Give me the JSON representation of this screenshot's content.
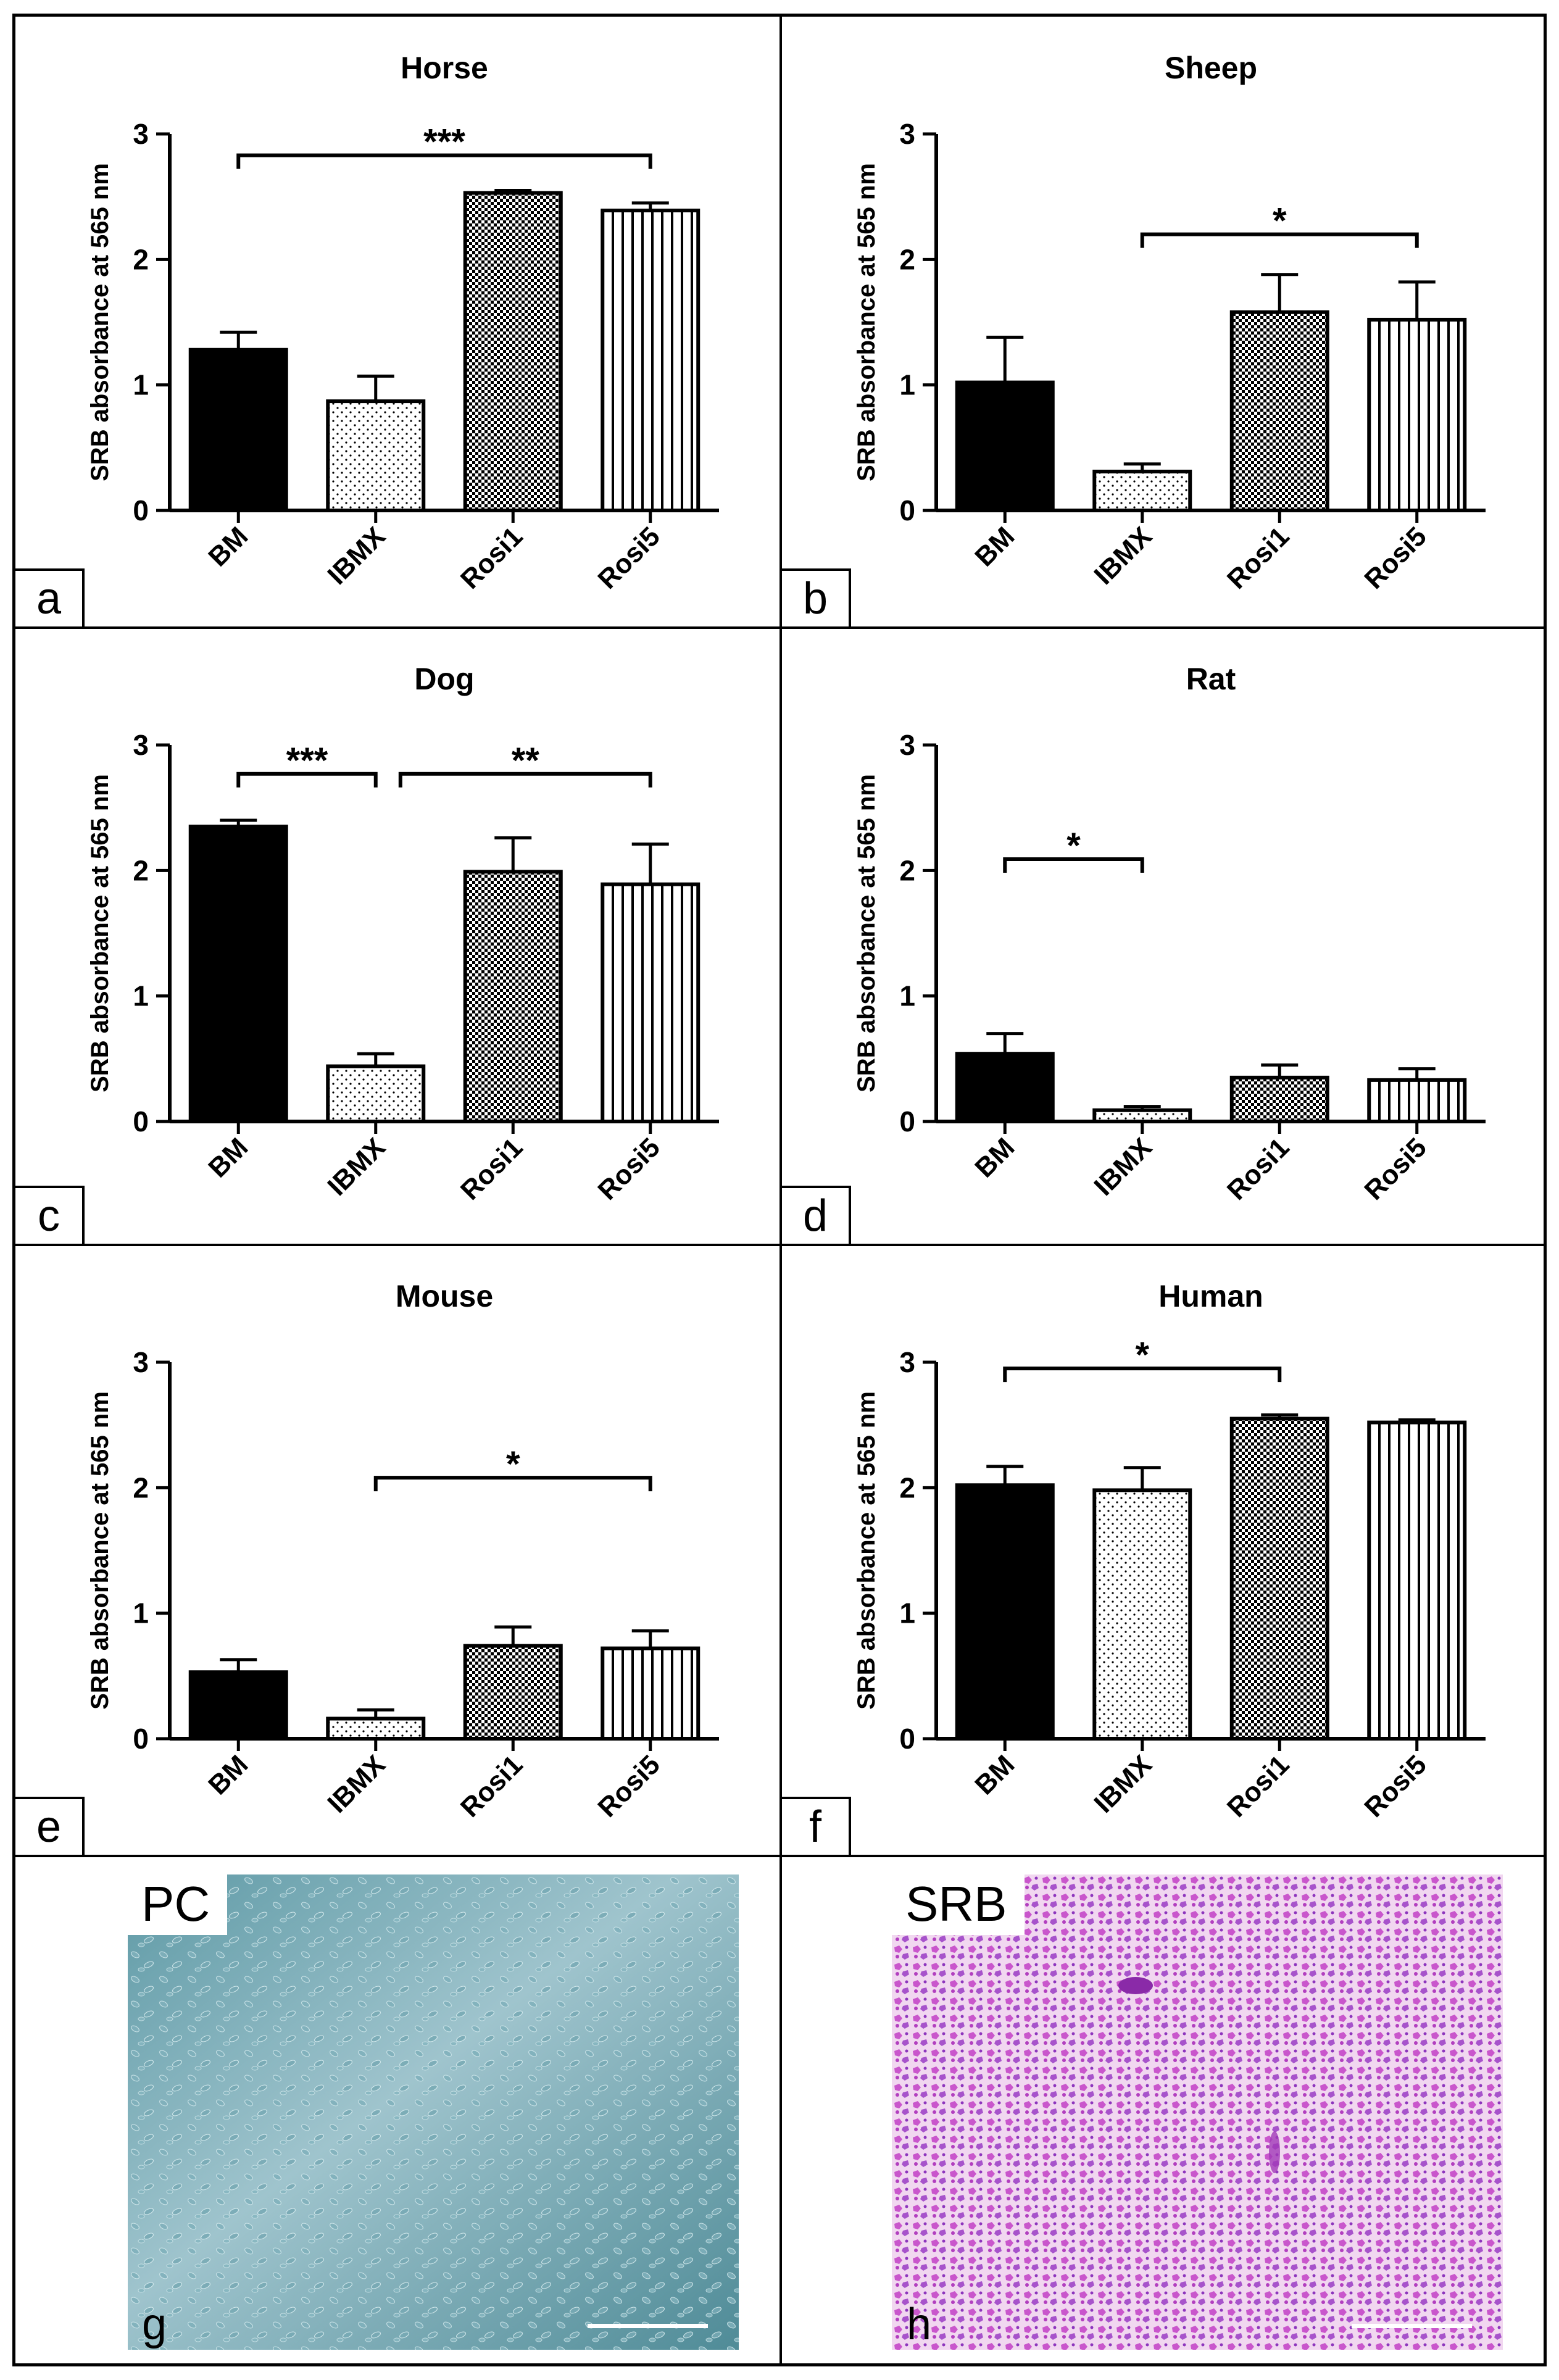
{
  "figure": {
    "panels": [
      {
        "letter": "a"
      },
      {
        "letter": "b"
      },
      {
        "letter": "c"
      },
      {
        "letter": "d"
      },
      {
        "letter": "e"
      },
      {
        "letter": "f"
      }
    ],
    "photos": [
      {
        "label": "PC",
        "letter": "g",
        "description": "phase contrast micrograph of cells"
      },
      {
        "label": "SRB",
        "letter": "h",
        "description": "SRB stained micrograph of cells"
      }
    ]
  },
  "colors": {
    "axis": "#000000",
    "bm_fill": "#000000",
    "pattern_fill": "#ffffff"
  },
  "chart_data": [
    {
      "type": "bar",
      "title": "Horse",
      "ylabel": "SRB absorbance at 565 nm",
      "xlabel": "",
      "categories": [
        "BM",
        "IBMX",
        "Rosi1",
        "Rosi5"
      ],
      "values": [
        1.28,
        0.87,
        2.53,
        2.39
      ],
      "errors": [
        0.14,
        0.2,
        0.02,
        0.06
      ],
      "ylim": [
        0,
        3
      ],
      "yticks": [
        0,
        1,
        2,
        3
      ],
      "significance": [
        {
          "from": 0,
          "to": 3,
          "label": "***",
          "y": 2.83
        }
      ]
    },
    {
      "type": "bar",
      "title": "Sheep",
      "ylabel": "SRB absorbance at 565 nm",
      "xlabel": "",
      "categories": [
        "BM",
        "IBMX",
        "Rosi1",
        "Rosi5"
      ],
      "values": [
        1.02,
        0.31,
        1.58,
        1.52
      ],
      "errors": [
        0.36,
        0.06,
        0.3,
        0.3
      ],
      "ylim": [
        0,
        3
      ],
      "yticks": [
        0,
        1,
        2,
        3
      ],
      "significance": [
        {
          "from": 1,
          "to": 3,
          "label": "*",
          "y": 2.2
        }
      ]
    },
    {
      "type": "bar",
      "title": "Dog",
      "ylabel": "SRB absorbance at 565 nm",
      "xlabel": "",
      "categories": [
        "BM",
        "IBMX",
        "Rosi1",
        "Rosi5"
      ],
      "values": [
        2.35,
        0.44,
        1.99,
        1.89
      ],
      "errors": [
        0.05,
        0.1,
        0.27,
        0.32
      ],
      "ylim": [
        0,
        3
      ],
      "yticks": [
        0,
        1,
        2,
        3
      ],
      "significance": [
        {
          "from": 0,
          "to": 1,
          "label": "***",
          "y": 2.77
        },
        {
          "from": 1.18,
          "to": 3,
          "label": "**",
          "y": 2.77
        }
      ]
    },
    {
      "type": "bar",
      "title": "Rat",
      "ylabel": "SRB absorbance at 565 nm",
      "xlabel": "",
      "categories": [
        "BM",
        "IBMX",
        "Rosi1",
        "Rosi5"
      ],
      "values": [
        0.54,
        0.09,
        0.35,
        0.33
      ],
      "errors": [
        0.16,
        0.03,
        0.1,
        0.09
      ],
      "ylim": [
        0,
        3
      ],
      "yticks": [
        0,
        1,
        2,
        3
      ],
      "significance": [
        {
          "from": 0,
          "to": 1,
          "label": "*",
          "y": 2.09
        }
      ]
    },
    {
      "type": "bar",
      "title": "Mouse",
      "ylabel": "SRB absorbance at 565 nm",
      "xlabel": "",
      "categories": [
        "BM",
        "IBMX",
        "Rosi1",
        "Rosi5"
      ],
      "values": [
        0.53,
        0.16,
        0.74,
        0.72
      ],
      "errors": [
        0.1,
        0.07,
        0.15,
        0.14
      ],
      "ylim": [
        0,
        3
      ],
      "yticks": [
        0,
        1,
        2,
        3
      ],
      "significance": [
        {
          "from": 1,
          "to": 3,
          "label": "*",
          "y": 2.08
        }
      ]
    },
    {
      "type": "bar",
      "title": "Human",
      "ylabel": "SRB absorbance at 565 nm",
      "xlabel": "",
      "categories": [
        "BM",
        "IBMX",
        "Rosi1",
        "Rosi5"
      ],
      "values": [
        2.02,
        1.98,
        2.55,
        2.52
      ],
      "errors": [
        0.15,
        0.18,
        0.03,
        0.02
      ],
      "ylim": [
        0,
        3
      ],
      "yticks": [
        0,
        1,
        2,
        3
      ],
      "significance": [
        {
          "from": 0,
          "to": 2,
          "label": "*",
          "y": 2.95
        }
      ]
    }
  ]
}
